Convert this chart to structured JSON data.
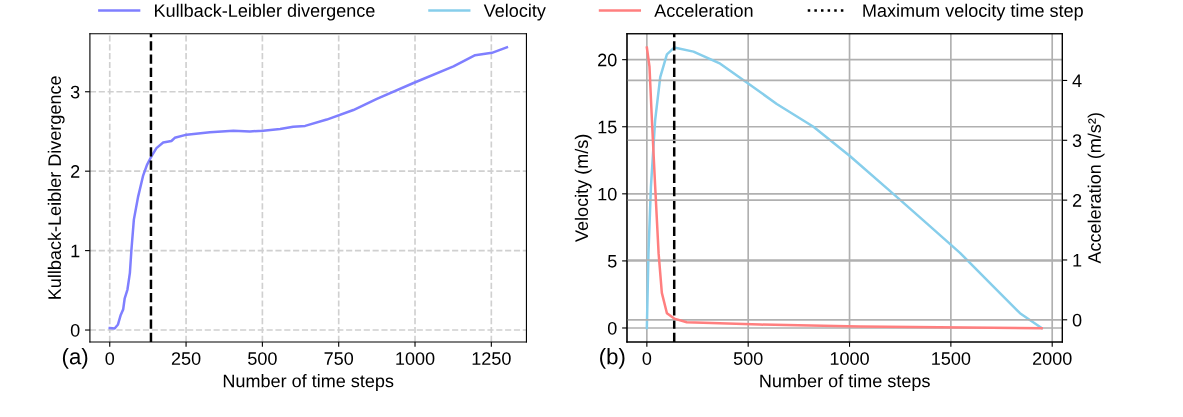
{
  "chart_data": [
    {
      "type": "line",
      "xlabel": "Number of time steps",
      "ylabel": "Kullback-Leibler Divergence",
      "xlim": [
        -65,
        1365
      ],
      "ylim": [
        -0.15,
        3.73
      ],
      "xticks": [
        0,
        250,
        500,
        750,
        1000,
        1250
      ],
      "yticks": [
        0,
        1,
        2,
        3
      ],
      "grid": true,
      "legend": "top",
      "annotations": [
        "(a)"
      ],
      "ref_lines": [
        {
          "axis": "x",
          "value": 135,
          "color": "#000000",
          "line_style": "dashed"
        }
      ],
      "series": [
        {
          "name": "Kullback-Leibler divergence",
          "color": "#7f7fff",
          "x": [
            0,
            16,
            27,
            36,
            44,
            49,
            58,
            66,
            71,
            79,
            93,
            109,
            122,
            137,
            153,
            175,
            202,
            213,
            252,
            328,
            405,
            459,
            503,
            558,
            601,
            640,
            711,
            798,
            875,
            995,
            1126,
            1197,
            1252,
            1301
          ],
          "values": [
            0.025,
            0.02,
            0.07,
            0.19,
            0.26,
            0.4,
            0.51,
            0.72,
            1.01,
            1.39,
            1.68,
            1.94,
            2.08,
            2.19,
            2.29,
            2.36,
            2.38,
            2.42,
            2.46,
            2.49,
            2.51,
            2.5,
            2.51,
            2.53,
            2.56,
            2.57,
            2.65,
            2.77,
            2.91,
            3.11,
            3.32,
            3.46,
            3.49,
            3.56
          ]
        }
      ]
    },
    {
      "type": "line",
      "xlabel": "Number of time steps",
      "ylabel": "Velocity (m/s)",
      "y2label": "Acceleration (m/s²)",
      "xlim": [
        -98,
        2050
      ],
      "ylim": [
        -1.04,
        21.93
      ],
      "y2lim": [
        -0.37,
        4.78
      ],
      "xticks": [
        0,
        500,
        1000,
        1500,
        2000
      ],
      "yticks": [
        0,
        5,
        10,
        15,
        20
      ],
      "y2ticks": [
        0,
        1,
        2,
        3,
        4
      ],
      "grid": true,
      "legend": "top",
      "annotations": [
        "(b)"
      ],
      "ref_lines": [
        {
          "axis": "x",
          "value": 135,
          "color": "#000000",
          "line_style": "dashed",
          "label": "Maximum velocity time step"
        }
      ],
      "series": [
        {
          "name": "Velocity",
          "color": "#87ceeb",
          "x": [
            0,
            8,
            20,
            41,
            66,
            99,
            135,
            230,
            362,
            493,
            641,
            822,
            1003,
            1216,
            1381,
            1545,
            1709,
            1841,
            1948
          ],
          "values": [
            0,
            5.6,
            10.5,
            15.5,
            18.7,
            20.4,
            20.9,
            20.6,
            19.7,
            18.3,
            16.7,
            15.0,
            12.8,
            10.0,
            7.8,
            5.6,
            3.1,
            1.1,
            0
          ]
        },
        {
          "name": "Acceleration",
          "color": "#ff7f7f",
          "axis": "y2",
          "x": [
            0,
            13,
            25,
            41,
            58,
            74,
            99,
            135,
            197,
            559,
            1052,
            1948
          ],
          "values": [
            4.55,
            4.23,
            3.34,
            2.23,
            1.11,
            0.45,
            0.11,
            0.02,
            -0.04,
            -0.08,
            -0.11,
            -0.14
          ]
        }
      ]
    }
  ]
}
